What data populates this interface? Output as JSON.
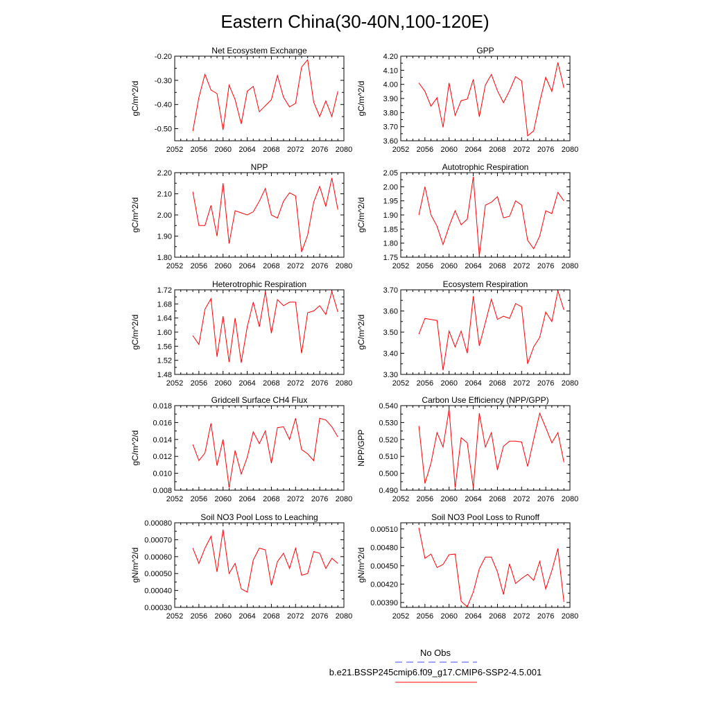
{
  "figure": {
    "title": "Eastern China(30-40N,100-120E)",
    "legend": {
      "obs_label": "No Obs",
      "obs_color": "#4040ff",
      "model_label": "b.e21.BSSP245cmip6.f09_g17.CMIP6-SSP2-4.5.001",
      "model_color": "#ff0000"
    }
  },
  "chart_data": [
    {
      "type": "line",
      "title": "Net Ecosystem Exchange",
      "ylabel": "gC/m^2/d",
      "xlim": [
        2052,
        2080
      ],
      "ylim": [
        -0.55,
        -0.2
      ],
      "xticks": [
        "2052",
        "2056",
        "2060",
        "2064",
        "2068",
        "2072",
        "2076",
        "2080"
      ],
      "yticks": [
        {
          "value": -0.2,
          "label": "-0.20"
        },
        {
          "value": -0.3,
          "label": "-0.30"
        },
        {
          "value": -0.4,
          "label": "-0.40"
        },
        {
          "value": -0.5,
          "label": "-0.50"
        }
      ],
      "series": [
        {
          "color": "#ff0000",
          "x": [
            2055,
            2056,
            2057,
            2058,
            2059,
            2060,
            2061,
            2062,
            2063,
            2064,
            2065,
            2066,
            2067,
            2068,
            2069,
            2070,
            2071,
            2072,
            2073,
            2074,
            2075,
            2076,
            2077,
            2078,
            2079
          ],
          "y": [
            -0.51,
            -0.37,
            -0.275,
            -0.34,
            -0.355,
            -0.505,
            -0.32,
            -0.38,
            -0.48,
            -0.345,
            -0.325,
            -0.43,
            -0.405,
            -0.38,
            -0.28,
            -0.37,
            -0.41,
            -0.395,
            -0.245,
            -0.215,
            -0.39,
            -0.45,
            -0.385,
            -0.45,
            -0.345
          ]
        }
      ]
    },
    {
      "type": "line",
      "title": "GPP",
      "ylabel": "gC/m^2/d",
      "xlim": [
        2052,
        2080
      ],
      "ylim": [
        3.6,
        4.2
      ],
      "xticks": [
        "2052",
        "2056",
        "2060",
        "2064",
        "2068",
        "2072",
        "2076",
        "2080"
      ],
      "yticks": [
        {
          "value": 4.2,
          "label": "4.20"
        },
        {
          "value": 4.1,
          "label": "4.10"
        },
        {
          "value": 4.0,
          "label": "4.00"
        },
        {
          "value": 3.9,
          "label": "3.90"
        },
        {
          "value": 3.8,
          "label": "3.80"
        },
        {
          "value": 3.7,
          "label": "3.70"
        },
        {
          "value": 3.6,
          "label": "3.60"
        }
      ],
      "series": [
        {
          "color": "#ff0000",
          "x": [
            2055,
            2056,
            2057,
            2058,
            2059,
            2060,
            2061,
            2062,
            2063,
            2064,
            2065,
            2066,
            2067,
            2068,
            2069,
            2070,
            2071,
            2072,
            2073,
            2074,
            2075,
            2076,
            2077,
            2078,
            2079
          ],
          "y": [
            4.01,
            3.95,
            3.845,
            3.905,
            3.695,
            4.01,
            3.78,
            3.885,
            3.895,
            4.035,
            3.77,
            3.995,
            4.07,
            3.955,
            3.87,
            3.955,
            4.055,
            4.025,
            3.635,
            3.67,
            3.875,
            4.05,
            3.95,
            4.155,
            3.975
          ]
        }
      ]
    },
    {
      "type": "line",
      "title": "NPP",
      "ylabel": "gC/m^2/d",
      "xlim": [
        2052,
        2080
      ],
      "ylim": [
        1.8,
        2.2
      ],
      "xticks": [
        "2052",
        "2056",
        "2060",
        "2064",
        "2068",
        "2072",
        "2076",
        "2080"
      ],
      "yticks": [
        {
          "value": 2.2,
          "label": "2.20"
        },
        {
          "value": 2.1,
          "label": "2.10"
        },
        {
          "value": 2.0,
          "label": "2.00"
        },
        {
          "value": 1.9,
          "label": "1.90"
        },
        {
          "value": 1.8,
          "label": "1.80"
        }
      ],
      "series": [
        {
          "color": "#ff0000",
          "x": [
            2055,
            2056,
            2057,
            2058,
            2059,
            2060,
            2061,
            2062,
            2063,
            2064,
            2065,
            2066,
            2067,
            2068,
            2069,
            2070,
            2071,
            2072,
            2073,
            2074,
            2075,
            2076,
            2077,
            2078,
            2079
          ],
          "y": [
            2.11,
            1.95,
            1.95,
            2.045,
            1.9,
            2.15,
            1.865,
            2.02,
            2.01,
            2.0,
            2.015,
            2.065,
            2.125,
            2.0,
            1.985,
            2.065,
            2.105,
            2.09,
            1.825,
            1.905,
            2.06,
            2.135,
            2.04,
            2.175,
            2.025
          ]
        }
      ]
    },
    {
      "type": "line",
      "title": "Autotrophic Respiration",
      "ylabel": "gC/m^2/d",
      "xlim": [
        2052,
        2080
      ],
      "ylim": [
        1.75,
        2.05
      ],
      "xticks": [
        "2052",
        "2056",
        "2060",
        "2064",
        "2068",
        "2072",
        "2076",
        "2080"
      ],
      "yticks": [
        {
          "value": 2.05,
          "label": "2.05"
        },
        {
          "value": 2.0,
          "label": "2.00"
        },
        {
          "value": 1.95,
          "label": "1.95"
        },
        {
          "value": 1.9,
          "label": "1.90"
        },
        {
          "value": 1.85,
          "label": "1.85"
        },
        {
          "value": 1.8,
          "label": "1.80"
        },
        {
          "value": 1.75,
          "label": "1.75"
        }
      ],
      "series": [
        {
          "color": "#ff0000",
          "x": [
            2055,
            2056,
            2057,
            2058,
            2059,
            2060,
            2061,
            2062,
            2063,
            2064,
            2065,
            2066,
            2067,
            2068,
            2069,
            2070,
            2071,
            2072,
            2073,
            2074,
            2075,
            2076,
            2077,
            2078,
            2079
          ],
          "y": [
            1.9,
            2.0,
            1.9,
            1.86,
            1.795,
            1.86,
            1.915,
            1.865,
            1.885,
            2.035,
            1.755,
            1.935,
            1.945,
            1.965,
            1.89,
            1.895,
            1.95,
            1.935,
            1.81,
            1.78,
            1.825,
            1.915,
            1.905,
            1.98,
            1.95
          ]
        }
      ]
    },
    {
      "type": "line",
      "title": "Heterotrophic Respiration",
      "ylabel": "gC/m^2/d",
      "xlim": [
        2052,
        2080
      ],
      "ylim": [
        1.48,
        1.72
      ],
      "xticks": [
        "2052",
        "2056",
        "2060",
        "2064",
        "2068",
        "2072",
        "2076",
        "2080"
      ],
      "yticks": [
        {
          "value": 1.72,
          "label": "1.72"
        },
        {
          "value": 1.68,
          "label": "1.68"
        },
        {
          "value": 1.64,
          "label": "1.64"
        },
        {
          "value": 1.6,
          "label": "1.60"
        },
        {
          "value": 1.56,
          "label": "1.56"
        },
        {
          "value": 1.52,
          "label": "1.52"
        },
        {
          "value": 1.48,
          "label": "1.48"
        }
      ],
      "series": [
        {
          "color": "#ff0000",
          "x": [
            2055,
            2056,
            2057,
            2058,
            2059,
            2060,
            2061,
            2062,
            2063,
            2064,
            2065,
            2066,
            2067,
            2068,
            2069,
            2070,
            2071,
            2072,
            2073,
            2074,
            2075,
            2076,
            2077,
            2078,
            2079
          ],
          "y": [
            1.59,
            1.565,
            1.665,
            1.695,
            1.53,
            1.645,
            1.515,
            1.64,
            1.513,
            1.615,
            1.685,
            1.615,
            1.715,
            1.597,
            1.692,
            1.675,
            1.685,
            1.685,
            1.54,
            1.655,
            1.66,
            1.675,
            1.65,
            1.715,
            1.657
          ]
        }
      ]
    },
    {
      "type": "line",
      "title": "Ecosystem Respiration",
      "ylabel": "gC/m^2/d",
      "xlim": [
        2052,
        2080
      ],
      "ylim": [
        3.3,
        3.7
      ],
      "xticks": [
        "2052",
        "2056",
        "2060",
        "2064",
        "2068",
        "2072",
        "2076",
        "2080"
      ],
      "yticks": [
        {
          "value": 3.7,
          "label": "3.70"
        },
        {
          "value": 3.6,
          "label": "3.60"
        },
        {
          "value": 3.5,
          "label": "3.50"
        },
        {
          "value": 3.4,
          "label": "3.40"
        },
        {
          "value": 3.3,
          "label": "3.30"
        }
      ],
      "series": [
        {
          "color": "#ff0000",
          "x": [
            2055,
            2056,
            2057,
            2058,
            2059,
            2060,
            2061,
            2062,
            2063,
            2064,
            2065,
            2066,
            2067,
            2068,
            2069,
            2070,
            2071,
            2072,
            2073,
            2074,
            2075,
            2076,
            2077,
            2078,
            2079
          ],
          "y": [
            3.49,
            3.565,
            3.56,
            3.555,
            3.32,
            3.505,
            3.43,
            3.505,
            3.4,
            3.67,
            3.435,
            3.545,
            3.655,
            3.56,
            3.575,
            3.565,
            3.635,
            3.62,
            3.35,
            3.43,
            3.475,
            3.595,
            3.55,
            3.695,
            3.605
          ]
        }
      ]
    },
    {
      "type": "line",
      "title": "Gridcell Surface CH4 Flux",
      "ylabel": "gC/m^2/d",
      "xlim": [
        2052,
        2080
      ],
      "ylim": [
        0.008,
        0.018
      ],
      "xticks": [
        "2052",
        "2056",
        "2060",
        "2064",
        "2068",
        "2072",
        "2076",
        "2080"
      ],
      "yticks": [
        {
          "value": 0.018,
          "label": "0.018"
        },
        {
          "value": 0.016,
          "label": "0.016"
        },
        {
          "value": 0.014,
          "label": "0.014"
        },
        {
          "value": 0.012,
          "label": "0.012"
        },
        {
          "value": 0.01,
          "label": "0.010"
        },
        {
          "value": 0.008,
          "label": "0.008"
        }
      ],
      "series": [
        {
          "color": "#ff0000",
          "x": [
            2055,
            2056,
            2057,
            2058,
            2059,
            2060,
            2061,
            2062,
            2063,
            2064,
            2065,
            2066,
            2067,
            2068,
            2069,
            2070,
            2071,
            2072,
            2073,
            2074,
            2075,
            2076,
            2077,
            2078,
            2079
          ],
          "y": [
            0.0134,
            0.0115,
            0.0124,
            0.0159,
            0.0109,
            0.014,
            0.0083,
            0.0127,
            0.0099,
            0.0119,
            0.0149,
            0.0135,
            0.015,
            0.0112,
            0.0154,
            0.0155,
            0.014,
            0.0165,
            0.0128,
            0.0123,
            0.0115,
            0.0165,
            0.0163,
            0.0155,
            0.0143
          ]
        }
      ]
    },
    {
      "type": "line",
      "title": "Carbon Use Efficiency (NPP/GPP)",
      "ylabel": "NPP/GPP",
      "xlim": [
        2052,
        2080
      ],
      "ylim": [
        0.49,
        0.54
      ],
      "xticks": [
        "2052",
        "2056",
        "2060",
        "2064",
        "2068",
        "2072",
        "2076",
        "2080"
      ],
      "yticks": [
        {
          "value": 0.54,
          "label": "0.540"
        },
        {
          "value": 0.53,
          "label": "0.530"
        },
        {
          "value": 0.52,
          "label": "0.520"
        },
        {
          "value": 0.51,
          "label": "0.510"
        },
        {
          "value": 0.5,
          "label": "0.500"
        },
        {
          "value": 0.49,
          "label": "0.490"
        }
      ],
      "series": [
        {
          "color": "#ff0000",
          "x": [
            2055,
            2056,
            2057,
            2058,
            2059,
            2060,
            2061,
            2062,
            2063,
            2064,
            2065,
            2066,
            2067,
            2068,
            2069,
            2070,
            2071,
            2072,
            2073,
            2074,
            2075,
            2076,
            2077,
            2078,
            2079
          ],
          "y": [
            0.528,
            0.494,
            0.506,
            0.524,
            0.5155,
            0.538,
            0.4915,
            0.521,
            0.518,
            0.4915,
            0.5355,
            0.5155,
            0.524,
            0.502,
            0.516,
            0.519,
            0.519,
            0.5185,
            0.504,
            0.52,
            0.5355,
            0.527,
            0.518,
            0.524,
            0.5065
          ]
        }
      ]
    },
    {
      "type": "line",
      "title": "Soil NO3 Pool Loss to Leaching",
      "ylabel": "gN/m^2/d",
      "xlim": [
        2052,
        2080
      ],
      "ylim": [
        0.0003,
        0.0008
      ],
      "xticks": [
        "2052",
        "2056",
        "2060",
        "2064",
        "2068",
        "2072",
        "2076",
        "2080"
      ],
      "yticks": [
        {
          "value": 0.0008,
          "label": "0.00080"
        },
        {
          "value": 0.0007,
          "label": "0.00070"
        },
        {
          "value": 0.0006,
          "label": "0.00060"
        },
        {
          "value": 0.0005,
          "label": "0.00050"
        },
        {
          "value": 0.0004,
          "label": "0.00040"
        },
        {
          "value": 0.0003,
          "label": "0.00030"
        }
      ],
      "series": [
        {
          "color": "#ff0000",
          "x": [
            2055,
            2056,
            2057,
            2058,
            2059,
            2060,
            2061,
            2062,
            2063,
            2064,
            2065,
            2066,
            2067,
            2068,
            2069,
            2070,
            2071,
            2072,
            2073,
            2074,
            2075,
            2076,
            2077,
            2078,
            2079
          ],
          "y": [
            0.00065,
            0.00056,
            0.00065,
            0.00072,
            0.00051,
            0.00076,
            0.0005,
            0.00056,
            0.00041,
            0.00039,
            0.00058,
            0.00065,
            0.00064,
            0.00043,
            0.00057,
            0.00062,
            0.00053,
            0.00065,
            0.00049,
            0.0005,
            0.00063,
            0.00062,
            0.00053,
            0.00059,
            0.00056
          ]
        }
      ]
    },
    {
      "type": "line",
      "title": "Soil NO3 Pool Loss to Runoff",
      "ylabel": "gN/m^2/d",
      "xlim": [
        2052,
        2080
      ],
      "ylim": [
        0.00382,
        0.0052
      ],
      "xticks": [
        "2052",
        "2056",
        "2060",
        "2064",
        "2068",
        "2072",
        "2076",
        "2080"
      ],
      "yticks": [
        {
          "value": 0.0051,
          "label": "0.00510"
        },
        {
          "value": 0.0048,
          "label": "0.00480"
        },
        {
          "value": 0.0045,
          "label": "0.00450"
        },
        {
          "value": 0.0042,
          "label": "0.00420"
        },
        {
          "value": 0.0039,
          "label": "0.00390"
        }
      ],
      "series": [
        {
          "color": "#ff0000",
          "x": [
            2055,
            2056,
            2057,
            2058,
            2059,
            2060,
            2061,
            2062,
            2063,
            2064,
            2065,
            2066,
            2067,
            2068,
            2069,
            2070,
            2071,
            2072,
            2073,
            2074,
            2075,
            2076,
            2077,
            2078,
            2079
          ],
          "y": [
            0.00512,
            0.00462,
            0.00469,
            0.00447,
            0.00452,
            0.00468,
            0.00469,
            0.00392,
            0.00383,
            0.00407,
            0.00445,
            0.00464,
            0.00464,
            0.0044,
            0.00403,
            0.00453,
            0.00421,
            0.00429,
            0.00436,
            0.00426,
            0.00457,
            0.00412,
            0.00442,
            0.00478,
            0.00391
          ]
        }
      ]
    }
  ]
}
